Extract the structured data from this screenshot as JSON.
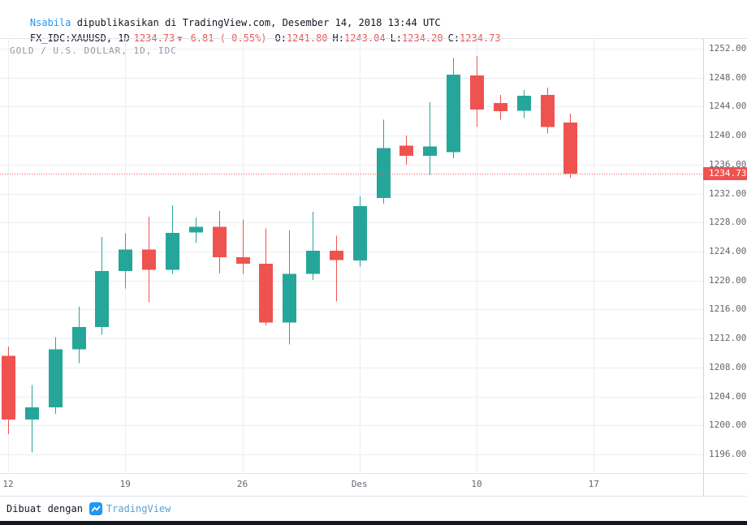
{
  "header": {
    "username": "Nsabila",
    "publish_text": " dipublikasikan di TradingView.com, Desember 14, 2018 13:44 UTC",
    "symbol": "FX_IDC:XAUUSD, 1D",
    "last_price": "1234.73",
    "change_arrow": "▼",
    "change": "-6.81 (-0.55%)",
    "o_label": "O:",
    "o_value": "1241.80",
    "h_label": "H:",
    "h_value": "1243.04",
    "l_label": "L:",
    "l_value": "1234.20",
    "c_label": "C:",
    "c_value": "1234.73"
  },
  "price_axis": {
    "last_price_label": "1234.73"
  },
  "footer": {
    "made_with": "Dibuat dengan",
    "brand": "TradingView"
  },
  "chart_data": {
    "type": "candlestick",
    "title": "GOLD / U.S. DOLLAR, 1D, IDC",
    "symbol": "FX_IDC:XAUUSD",
    "interval": "1D",
    "grid": true,
    "legend": "none",
    "last_close": 1234.73,
    "colors": {
      "up": "#26a69a",
      "down": "#ef5350",
      "grid": "#ebeef4",
      "last_price_line": "#ef5350"
    },
    "y_axis": {
      "min": 1193.5,
      "max": 1253.3,
      "tick_step": 4,
      "ticks": [
        1252,
        1248,
        1244,
        1240,
        1236,
        1232,
        1228,
        1224,
        1220,
        1216,
        1212,
        1208,
        1204,
        1200,
        1196
      ]
    },
    "x_ticks": [
      {
        "label": "12",
        "slot": 0
      },
      {
        "label": "19",
        "slot": 5
      },
      {
        "label": "26",
        "slot": 10
      },
      {
        "label": "Des",
        "slot": 15
      },
      {
        "label": "10",
        "slot": 20
      },
      {
        "label": "17",
        "slot": 25
      }
    ],
    "candles": [
      {
        "d": "Nov 12",
        "o": 1209.6,
        "h": 1210.9,
        "l": 1198.8,
        "c": 1200.8
      },
      {
        "d": "Nov 13",
        "o": 1200.8,
        "h": 1205.6,
        "l": 1196.3,
        "c": 1202.5
      },
      {
        "d": "Nov 14",
        "o": 1202.5,
        "h": 1212.2,
        "l": 1201.6,
        "c": 1210.5
      },
      {
        "d": "Nov 15",
        "o": 1210.5,
        "h": 1216.4,
        "l": 1208.6,
        "c": 1213.6
      },
      {
        "d": "Nov 16",
        "o": 1213.6,
        "h": 1226.0,
        "l": 1212.5,
        "c": 1221.3
      },
      {
        "d": "Nov 19",
        "o": 1221.3,
        "h": 1226.5,
        "l": 1218.9,
        "c": 1224.3
      },
      {
        "d": "Nov 20",
        "o": 1224.3,
        "h": 1228.8,
        "l": 1217.0,
        "c": 1221.5
      },
      {
        "d": "Nov 21",
        "o": 1221.5,
        "h": 1230.4,
        "l": 1220.9,
        "c": 1226.6
      },
      {
        "d": "Nov 22",
        "o": 1226.6,
        "h": 1228.7,
        "l": 1225.2,
        "c": 1227.4
      },
      {
        "d": "Nov 23",
        "o": 1227.4,
        "h": 1229.6,
        "l": 1221.0,
        "c": 1223.2
      },
      {
        "d": "Nov 26",
        "o": 1223.2,
        "h": 1228.4,
        "l": 1220.9,
        "c": 1222.3
      },
      {
        "d": "Nov 27",
        "o": 1222.3,
        "h": 1227.2,
        "l": 1213.8,
        "c": 1214.2
      },
      {
        "d": "Nov 28",
        "o": 1214.2,
        "h": 1226.9,
        "l": 1211.2,
        "c": 1220.9
      },
      {
        "d": "Nov 29",
        "o": 1220.9,
        "h": 1229.5,
        "l": 1220.1,
        "c": 1224.1
      },
      {
        "d": "Nov 30",
        "o": 1224.1,
        "h": 1226.2,
        "l": 1217.1,
        "c": 1222.8
      },
      {
        "d": "Des 3",
        "o": 1222.8,
        "h": 1231.6,
        "l": 1221.9,
        "c": 1230.3
      },
      {
        "d": "Des 4",
        "o": 1231.4,
        "h": 1242.2,
        "l": 1230.6,
        "c": 1238.3
      },
      {
        "d": "Des 5",
        "o": 1238.6,
        "h": 1240.0,
        "l": 1236.0,
        "c": 1237.2
      },
      {
        "d": "Des 6",
        "o": 1237.2,
        "h": 1244.6,
        "l": 1234.6,
        "c": 1238.5
      },
      {
        "d": "Des 7",
        "o": 1237.7,
        "h": 1250.7,
        "l": 1236.9,
        "c": 1248.4
      },
      {
        "d": "Des 10",
        "o": 1248.3,
        "h": 1251.0,
        "l": 1241.2,
        "c": 1243.6
      },
      {
        "d": "Des 11",
        "o": 1244.5,
        "h": 1245.6,
        "l": 1242.2,
        "c": 1243.4
      },
      {
        "d": "Des 12",
        "o": 1243.4,
        "h": 1246.3,
        "l": 1242.4,
        "c": 1245.5
      },
      {
        "d": "Des 13",
        "o": 1245.6,
        "h": 1246.6,
        "l": 1240.3,
        "c": 1241.2
      },
      {
        "d": "Des 14",
        "o": 1241.8,
        "h": 1243.04,
        "l": 1234.2,
        "c": 1234.73
      }
    ]
  }
}
